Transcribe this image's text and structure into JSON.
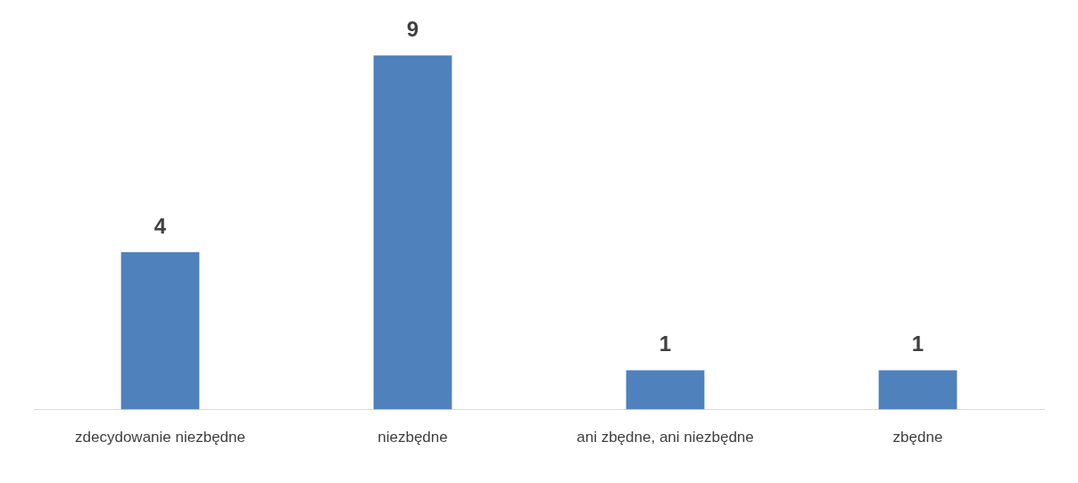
{
  "chart_data": {
    "type": "bar",
    "categories": [
      "zdecydowanie niezbędne",
      "niezbędne",
      "ani zbędne, ani niezbędne",
      "zbędne"
    ],
    "values": [
      4,
      9,
      1,
      1
    ],
    "color": "#4f81bd",
    "data_labels": true,
    "grid": false,
    "legend": false,
    "tick_labels": "x"
  }
}
